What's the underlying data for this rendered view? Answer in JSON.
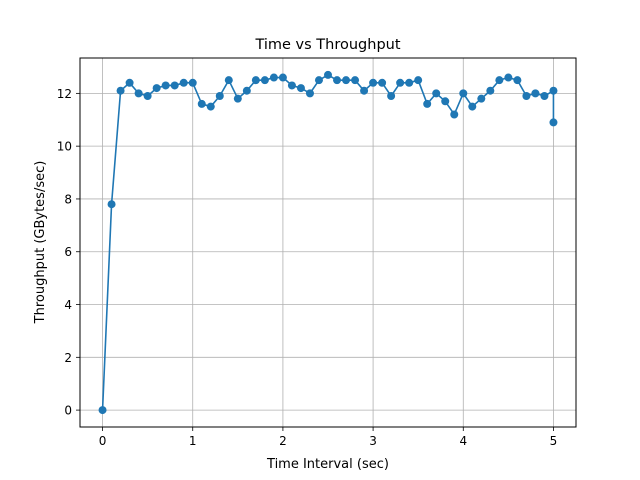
{
  "chart_data": {
    "type": "line",
    "title": "Time vs Throughput",
    "xlabel": "Time Interval (sec)",
    "ylabel": "Throughput (GBytes/sec)",
    "xlim": [
      -0.25,
      5.25
    ],
    "ylim": [
      -0.64,
      13.34
    ],
    "xticks": [
      0,
      1,
      2,
      3,
      4,
      5
    ],
    "yticks": [
      0,
      2,
      4,
      6,
      8,
      10,
      12
    ],
    "grid": true,
    "marker": "circle",
    "color": "#1f77b4",
    "x": [
      0,
      0.1,
      0.2,
      0.3,
      0.4,
      0.5,
      0.6,
      0.7,
      0.8,
      0.9,
      1.0,
      1.1,
      1.2,
      1.3,
      1.4,
      1.5,
      1.6,
      1.7,
      1.8,
      1.9,
      2.0,
      2.1,
      2.2,
      2.3,
      2.4,
      2.5,
      2.6,
      2.7,
      2.8,
      2.9,
      3.0,
      3.1,
      3.2,
      3.3,
      3.4,
      3.5,
      3.6,
      3.7,
      3.8,
      3.9,
      4.0,
      4.1,
      4.2,
      4.3,
      4.4,
      4.5,
      4.6,
      4.7,
      4.8,
      4.9,
      5.0,
      5.0
    ],
    "y": [
      0.0,
      7.8,
      12.1,
      12.4,
      12.0,
      11.9,
      12.2,
      12.3,
      12.3,
      12.4,
      12.4,
      11.6,
      11.5,
      11.9,
      12.5,
      11.8,
      12.1,
      12.5,
      12.5,
      12.6,
      12.6,
      12.3,
      12.2,
      12.0,
      12.5,
      12.7,
      12.5,
      12.5,
      12.5,
      12.1,
      12.4,
      12.4,
      11.9,
      12.4,
      12.4,
      12.5,
      11.6,
      12.0,
      11.7,
      11.2,
      12.0,
      11.5,
      11.8,
      12.1,
      12.5,
      12.6,
      12.5,
      11.9,
      12.0,
      11.9,
      12.1,
      10.9
    ]
  }
}
